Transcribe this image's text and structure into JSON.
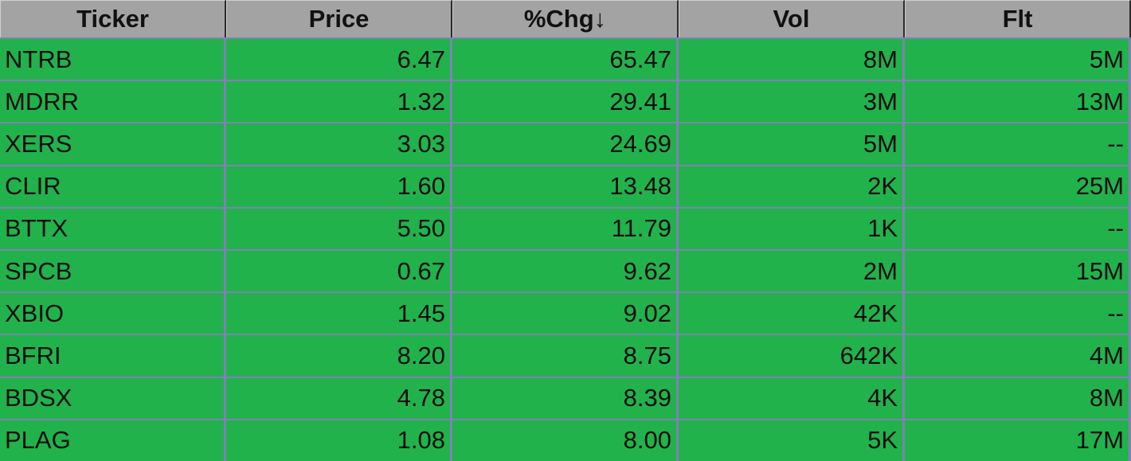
{
  "table": {
    "columns": [
      "Ticker",
      "Price",
      "%Chg↓",
      "Vol",
      "Flt"
    ],
    "rows": [
      {
        "ticker": "NTRB",
        "price": "6.47",
        "chg": "65.47",
        "vol": "8M",
        "flt": "5M"
      },
      {
        "ticker": "MDRR",
        "price": "1.32",
        "chg": "29.41",
        "vol": "3M",
        "flt": "13M"
      },
      {
        "ticker": "XERS",
        "price": "3.03",
        "chg": "24.69",
        "vol": "5M",
        "flt": "--"
      },
      {
        "ticker": "CLIR",
        "price": "1.60",
        "chg": "13.48",
        "vol": "2K",
        "flt": "25M"
      },
      {
        "ticker": "BTTX",
        "price": "5.50",
        "chg": "11.79",
        "vol": "1K",
        "flt": "--"
      },
      {
        "ticker": "SPCB",
        "price": "0.67",
        "chg": "9.62",
        "vol": "2M",
        "flt": "15M"
      },
      {
        "ticker": "XBIO",
        "price": "1.45",
        "chg": "9.02",
        "vol": "42K",
        "flt": "--"
      },
      {
        "ticker": "BFRI",
        "price": "8.20",
        "chg": "8.75",
        "vol": "642K",
        "flt": "4M"
      },
      {
        "ticker": "BDSX",
        "price": "4.78",
        "chg": "8.39",
        "vol": "4K",
        "flt": "8M"
      },
      {
        "ticker": "PLAG",
        "price": "1.08",
        "chg": "8.00",
        "vol": "5K",
        "flt": "17M"
      }
    ]
  },
  "colors": {
    "header_bg": "#a3a3a3",
    "row_bg": "#22b24c",
    "grid": "#7f82b4"
  }
}
